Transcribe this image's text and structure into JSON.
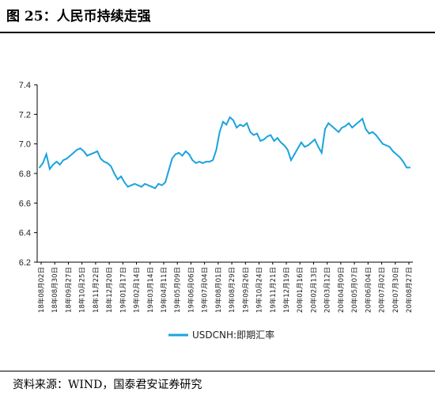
{
  "header": {
    "title": "图 25：人民币持续走强"
  },
  "footer": {
    "source": "资料来源：WIND，国泰君安证券研究"
  },
  "colors": {
    "series": "#1aa3e0",
    "axis": "#000000"
  },
  "chart_data": {
    "type": "line",
    "title": "",
    "xlabel": "",
    "ylabel": "",
    "ylim": [
      6.2,
      7.4
    ],
    "yticks": [
      6.2,
      6.4,
      6.6,
      6.8,
      7.0,
      7.2,
      7.4
    ],
    "grid": false,
    "legend": "bottom-center",
    "x_tick_labels": [
      "18年08月02日",
      "18年08月30日",
      "18年09月27日",
      "18年10月25日",
      "18年11月22日",
      "18年12月20日",
      "19年01月17日",
      "19年02月14日",
      "19年03月14日",
      "19年04月11日",
      "19年05月09日",
      "19年06月06日",
      "19年07月04日",
      "19年08月01日",
      "19年08月29日",
      "19年09月26日",
      "19年10月24日",
      "19年11月21日",
      "19年12月19日",
      "20年01月16日",
      "20年02月13日",
      "20年03月12日",
      "20年04月09日",
      "20年05月07日",
      "20年06月04日",
      "20年07月02日",
      "20年07月30日",
      "20年08月27日"
    ],
    "series": [
      {
        "name": "USDCNH:即期汇率",
        "x": [
          "2018-08-02",
          "2018-08-09",
          "2018-08-16",
          "2018-08-23",
          "2018-08-30",
          "2018-09-06",
          "2018-09-13",
          "2018-09-20",
          "2018-09-27",
          "2018-10-04",
          "2018-10-11",
          "2018-10-18",
          "2018-10-25",
          "2018-11-01",
          "2018-11-08",
          "2018-11-15",
          "2018-11-22",
          "2018-11-29",
          "2018-12-06",
          "2018-12-13",
          "2018-12-20",
          "2018-12-27",
          "2019-01-03",
          "2019-01-10",
          "2019-01-17",
          "2019-01-24",
          "2019-01-31",
          "2019-02-07",
          "2019-02-14",
          "2019-02-21",
          "2019-02-28",
          "2019-03-07",
          "2019-03-14",
          "2019-03-21",
          "2019-03-28",
          "2019-04-04",
          "2019-04-11",
          "2019-04-18",
          "2019-04-25",
          "2019-05-02",
          "2019-05-09",
          "2019-05-16",
          "2019-05-23",
          "2019-05-30",
          "2019-06-06",
          "2019-06-13",
          "2019-06-20",
          "2019-06-27",
          "2019-07-04",
          "2019-07-11",
          "2019-07-18",
          "2019-07-25",
          "2019-08-01",
          "2019-08-08",
          "2019-08-15",
          "2019-08-22",
          "2019-08-29",
          "2019-09-05",
          "2019-09-12",
          "2019-09-19",
          "2019-09-26",
          "2019-10-03",
          "2019-10-10",
          "2019-10-17",
          "2019-10-24",
          "2019-10-31",
          "2019-11-07",
          "2019-11-14",
          "2019-11-21",
          "2019-11-28",
          "2019-12-05",
          "2019-12-12",
          "2019-12-19",
          "2019-12-26",
          "2020-01-02",
          "2020-01-09",
          "2020-01-16",
          "2020-01-23",
          "2020-01-30",
          "2020-02-06",
          "2020-02-13",
          "2020-02-20",
          "2020-02-27",
          "2020-03-05",
          "2020-03-12",
          "2020-03-19",
          "2020-03-26",
          "2020-04-02",
          "2020-04-09",
          "2020-04-16",
          "2020-04-23",
          "2020-04-30",
          "2020-05-07",
          "2020-05-14",
          "2020-05-21",
          "2020-05-28",
          "2020-06-04",
          "2020-06-11",
          "2020-06-18",
          "2020-06-25",
          "2020-07-02",
          "2020-07-09",
          "2020-07-16",
          "2020-07-23",
          "2020-07-30",
          "2020-08-06",
          "2020-08-13",
          "2020-08-20",
          "2020-08-27",
          "2020-09-03"
        ],
        "values": [
          6.84,
          6.87,
          6.93,
          6.83,
          6.86,
          6.88,
          6.86,
          6.89,
          6.9,
          6.92,
          6.94,
          6.96,
          6.97,
          6.95,
          6.92,
          6.93,
          6.94,
          6.95,
          6.9,
          6.88,
          6.87,
          6.85,
          6.8,
          6.76,
          6.78,
          6.74,
          6.71,
          6.72,
          6.73,
          6.72,
          6.71,
          6.73,
          6.72,
          6.71,
          6.7,
          6.73,
          6.72,
          6.74,
          6.82,
          6.9,
          6.93,
          6.94,
          6.92,
          6.95,
          6.93,
          6.89,
          6.87,
          6.88,
          6.87,
          6.88,
          6.88,
          6.89,
          6.96,
          7.08,
          7.15,
          7.13,
          7.18,
          7.16,
          7.11,
          7.13,
          7.12,
          7.14,
          7.08,
          7.06,
          7.07,
          7.02,
          7.03,
          7.05,
          7.06,
          7.02,
          7.04,
          7.01,
          6.99,
          6.96,
          6.89,
          6.93,
          6.97,
          7.01,
          6.98,
          6.99,
          7.01,
          7.03,
          6.98,
          6.94,
          7.1,
          7.14,
          7.12,
          7.1,
          7.08,
          7.11,
          7.12,
          7.14,
          7.11,
          7.13,
          7.15,
          7.17,
          7.1,
          7.07,
          7.08,
          7.06,
          7.03,
          7.0,
          6.99,
          6.98,
          6.95,
          6.93,
          6.91,
          6.88,
          6.84,
          6.84
        ]
      }
    ]
  }
}
